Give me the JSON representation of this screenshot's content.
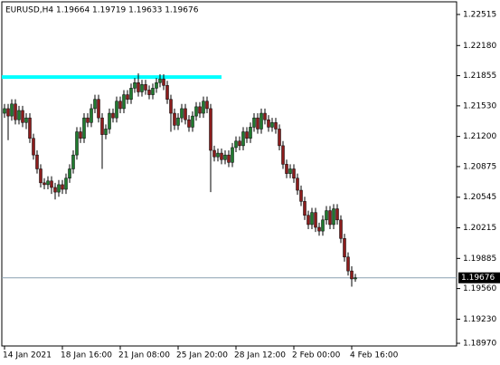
{
  "chart_data": {
    "type": "candlestick",
    "title": "EURUSD,H4  1.19664 1.19719 1.19633 1.19676",
    "categories": [
      "14 Jan 2021",
      null,
      null,
      null,
      null,
      null,
      null,
      null,
      null,
      null,
      null,
      null,
      null,
      null,
      null,
      null,
      "18 Jan 16:00",
      null,
      null,
      null,
      null,
      null,
      null,
      null,
      null,
      null,
      null,
      null,
      null,
      null,
      null,
      null,
      "21 Jan 08:00",
      null,
      null,
      null,
      null,
      null,
      null,
      null,
      null,
      null,
      null,
      null,
      null,
      null,
      null,
      null,
      "25 Jan 20:00",
      null,
      null,
      null,
      null,
      null,
      null,
      null,
      null,
      null,
      null,
      null,
      null,
      null,
      null,
      null,
      "28 Jan 12:00",
      null,
      null,
      null,
      null,
      null,
      null,
      null,
      null,
      null,
      null,
      null,
      null,
      null,
      null,
      null,
      "2 Feb 00:00",
      null,
      null,
      null,
      null,
      null,
      null,
      null,
      null,
      null,
      null,
      null,
      null,
      null,
      null,
      null,
      "4 Feb 16:00",
      null
    ],
    "open": [
      1.2145,
      1.215,
      1.2142,
      1.2155,
      1.2138,
      1.2148,
      1.2135,
      1.214,
      1.2118,
      1.21,
      1.2085,
      1.207,
      1.2068,
      1.2072,
      1.2065,
      1.206,
      1.2068,
      1.2063,
      1.2075,
      1.2085,
      1.21,
      1.2125,
      1.2118,
      1.214,
      1.2135,
      1.215,
      1.216,
      1.214,
      1.2122,
      1.2128,
      1.2145,
      1.214,
      1.2158,
      1.215,
      1.2165,
      1.216,
      1.2172,
      1.2178,
      1.2168,
      1.2176,
      1.217,
      1.2165,
      1.2172,
      1.2178,
      1.2182,
      1.2175,
      1.216,
      1.2145,
      1.2132,
      1.214,
      1.215,
      1.2138,
      1.213,
      1.2142,
      1.2152,
      1.2145,
      1.2158,
      1.215,
      1.2105,
      1.2098,
      1.2102,
      1.2095,
      1.21,
      1.2092,
      1.2108,
      1.2115,
      1.211,
      1.2125,
      1.2118,
      1.213,
      1.214,
      1.2128,
      1.2145,
      1.2138,
      1.213,
      1.2135,
      1.2128,
      1.211,
      1.209,
      1.208,
      1.2085,
      1.2075,
      1.2062,
      1.205,
      1.2035,
      1.2025,
      1.2038,
      1.2022,
      1.2018,
      1.203,
      1.204,
      1.2025,
      1.2042,
      1.203,
      1.201,
      1.199,
      1.1975,
      1.19664
    ],
    "high": [
      1.2155,
      1.2155,
      1.216,
      1.216,
      1.2153,
      1.2153,
      1.2145,
      1.2145,
      1.2123,
      1.2105,
      1.209,
      1.2075,
      1.2077,
      1.2077,
      1.207,
      1.2073,
      1.2073,
      1.208,
      1.209,
      1.2105,
      1.213,
      1.213,
      1.2145,
      1.2145,
      1.2155,
      1.2165,
      1.2165,
      1.2145,
      1.2133,
      1.215,
      1.215,
      1.2163,
      1.2163,
      1.217,
      1.217,
      1.2177,
      1.2183,
      1.2188,
      1.2181,
      1.2181,
      1.2175,
      1.2177,
      1.2183,
      1.2187,
      1.2187,
      1.218,
      1.2165,
      1.215,
      1.2145,
      1.2155,
      1.2155,
      1.2143,
      1.2147,
      1.2157,
      1.2157,
      1.2163,
      1.2163,
      1.2155,
      1.211,
      1.2107,
      1.2107,
      1.2105,
      1.2105,
      1.2113,
      1.212,
      1.212,
      1.213,
      1.213,
      1.2135,
      1.2145,
      1.2145,
      1.215,
      1.215,
      1.2143,
      1.214,
      1.214,
      1.2133,
      1.2115,
      1.2095,
      1.209,
      1.209,
      1.208,
      1.2067,
      1.2055,
      1.204,
      1.2043,
      1.2043,
      1.2027,
      1.2035,
      1.2045,
      1.2045,
      1.2047,
      1.2047,
      1.2035,
      1.2015,
      1.1995,
      1.198,
      1.19719
    ],
    "low": [
      1.214,
      1.2116,
      1.2137,
      1.2133,
      1.2133,
      1.213,
      1.2128,
      1.2113,
      1.2095,
      1.208,
      1.2065,
      1.2063,
      1.2063,
      1.2058,
      1.2052,
      1.2055,
      1.2058,
      1.2058,
      1.207,
      1.208,
      1.2095,
      1.2113,
      1.2113,
      1.213,
      1.213,
      1.2145,
      1.2135,
      1.2085,
      1.2117,
      1.2123,
      1.2135,
      1.2135,
      1.2145,
      1.2145,
      1.2155,
      1.2155,
      1.2167,
      1.2163,
      1.2163,
      1.2165,
      1.216,
      1.216,
      1.2167,
      1.2173,
      1.217,
      1.2155,
      1.2125,
      1.2127,
      1.2127,
      1.2135,
      1.2133,
      1.2125,
      1.2125,
      1.2137,
      1.214,
      1.214,
      1.2145,
      1.206,
      1.2093,
      1.2093,
      1.209,
      1.209,
      1.2087,
      1.2087,
      1.2103,
      1.2105,
      1.2105,
      1.2113,
      1.2113,
      1.2125,
      1.2123,
      1.2123,
      1.2133,
      1.2125,
      1.2125,
      1.2123,
      1.2105,
      1.2085,
      1.2075,
      1.2075,
      1.207,
      1.2057,
      1.2045,
      1.203,
      1.202,
      1.202,
      1.2017,
      1.2013,
      1.2013,
      1.2025,
      1.202,
      1.202,
      1.2025,
      1.2005,
      1.1985,
      1.197,
      1.1958,
      1.19633
    ],
    "close": [
      1.215,
      1.2142,
      1.2155,
      1.2138,
      1.2148,
      1.2135,
      1.214,
      1.2118,
      1.21,
      1.2085,
      1.207,
      1.2068,
      1.2072,
      1.2065,
      1.206,
      1.2068,
      1.2063,
      1.2075,
      1.2085,
      1.21,
      1.2125,
      1.2118,
      1.214,
      1.2135,
      1.215,
      1.216,
      1.214,
      1.2122,
      1.2128,
      1.2145,
      1.214,
      1.2158,
      1.215,
      1.2165,
      1.216,
      1.2172,
      1.2178,
      1.2168,
      1.2176,
      1.217,
      1.2165,
      1.2172,
      1.2178,
      1.2182,
      1.2175,
      1.216,
      1.2145,
      1.2132,
      1.214,
      1.215,
      1.2138,
      1.213,
      1.2142,
      1.2152,
      1.2145,
      1.2158,
      1.215,
      1.2105,
      1.2098,
      1.2102,
      1.2095,
      1.21,
      1.2092,
      1.2108,
      1.2115,
      1.211,
      1.2125,
      1.2118,
      1.213,
      1.214,
      1.2128,
      1.2145,
      1.2138,
      1.213,
      1.2135,
      1.2128,
      1.211,
      1.209,
      1.208,
      1.2085,
      1.2075,
      1.2062,
      1.205,
      1.2035,
      1.2025,
      1.2038,
      1.2022,
      1.2018,
      1.203,
      1.204,
      1.2025,
      1.2042,
      1.203,
      1.201,
      1.199,
      1.1975,
      1.19664,
      1.19676
    ],
    "bull_color": "#1f7a2e",
    "bear_color": "#8c1c1c",
    "level": 1.2184,
    "level_color": "#00ffff",
    "ylim": [
      1.18941,
      1.22671
    ],
    "yticks": [
      1.22515,
      {
        "value": 1.2218,
        "label": "1.22180"
      },
      1.21855,
      {
        "value": 1.2153,
        "label": "1.21530"
      },
      {
        "value": 1.212,
        "label": "1.21200"
      },
      1.20875,
      1.20545,
      1.20215,
      1.19885,
      {
        "value": 1.1956,
        "label": "1.19560"
      },
      {
        "value": 1.1923,
        "label": "1.19230"
      },
      {
        "value": 1.1897,
        "label": "1.18970"
      }
    ]
  }
}
